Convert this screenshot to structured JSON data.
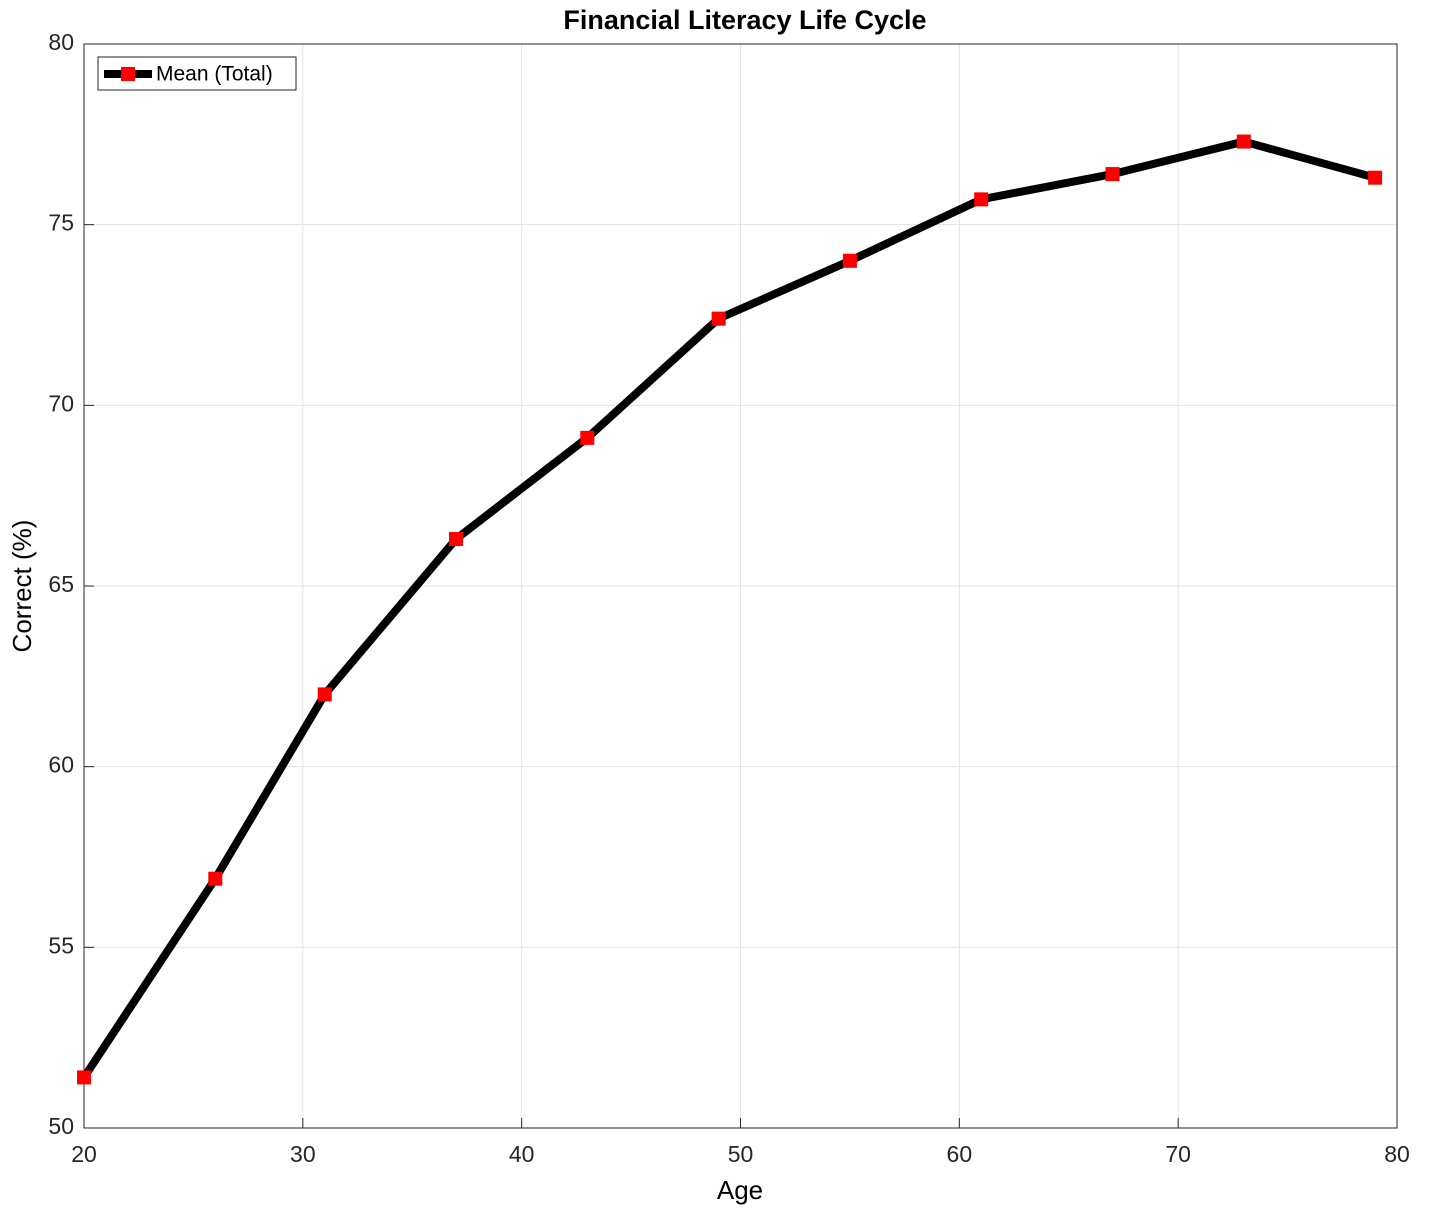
{
  "chart_data": {
    "type": "line",
    "title": "Financial Literacy Life Cycle",
    "x_label": "Age",
    "y_label": "Correct (%)",
    "x": [
      20,
      26,
      31,
      37,
      43,
      49,
      55,
      61,
      67,
      73,
      79
    ],
    "series": [
      {
        "name": "Mean (Total)",
        "color": "#000000",
        "marker_color": "#ff0000",
        "values": [
          51.4,
          56.9,
          62.0,
          66.3,
          69.1,
          72.4,
          74.0,
          75.7,
          76.4,
          77.3,
          76.3
        ]
      }
    ],
    "xlim": [
      20,
      80
    ],
    "xticks": [
      20,
      30,
      40,
      50,
      60,
      70,
      80
    ],
    "ylim": [
      50,
      80
    ],
    "yticks": [
      50,
      55,
      60,
      65,
      70,
      75,
      80
    ],
    "grid": true,
    "legend": "upper left"
  }
}
